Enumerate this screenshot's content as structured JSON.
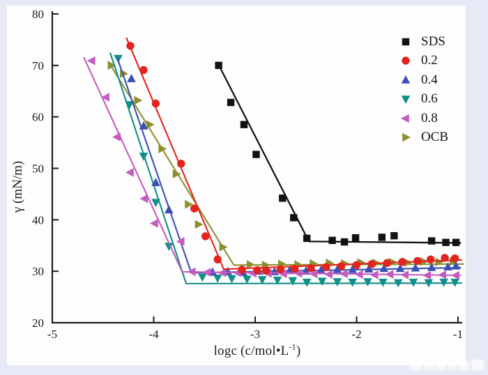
{
  "window": {
    "background_color": "#e7eaf6",
    "panel_color": "#fdfdfd",
    "axis_color": "#1c1c1c"
  },
  "watermark": {
    "legible": false
  },
  "chart_data": {
    "type": "scatter",
    "title": "",
    "xlabel": "logc (c/mol•L⁻¹)",
    "xlabel_parts": {
      "base": "logc (c/mol•L",
      "sup": "-1",
      "end": ")"
    },
    "ylabel": "γ (mN/m)",
    "xlim": [
      -5,
      -1
    ],
    "ylim": [
      20,
      80
    ],
    "xticks": [
      -5,
      -4,
      -3,
      -2,
      -1
    ],
    "yticks": [
      20,
      30,
      40,
      50,
      60,
      70,
      80
    ],
    "grid": false,
    "legend_position": "upper-right",
    "series": [
      {
        "name": "SDS",
        "marker": "square",
        "color": "#121212",
        "points": [
          [
            -3.36,
            70.0
          ],
          [
            -3.24,
            62.8
          ],
          [
            -3.11,
            58.5
          ],
          [
            -2.99,
            52.7
          ],
          [
            -2.73,
            44.2
          ],
          [
            -2.62,
            40.4
          ],
          [
            -2.49,
            36.4
          ],
          [
            -2.24,
            36.0
          ],
          [
            -2.12,
            35.7
          ],
          [
            -2.01,
            36.5
          ],
          [
            -1.75,
            36.6
          ],
          [
            -1.63,
            36.9
          ],
          [
            -1.26,
            35.9
          ],
          [
            -1.12,
            35.6
          ],
          [
            -1.02,
            35.6
          ]
        ],
        "fit_line": [
          [
            -3.37,
            70.5
          ],
          [
            -2.47,
            35.8
          ],
          [
            -0.97,
            35.5
          ]
        ]
      },
      {
        "name": "0.2",
        "marker": "circle",
        "color": "#e2231e",
        "points": [
          [
            -4.23,
            73.8
          ],
          [
            -4.1,
            69.1
          ],
          [
            -3.98,
            62.6
          ],
          [
            -3.73,
            50.9
          ],
          [
            -3.6,
            42.2
          ],
          [
            -3.49,
            36.8
          ],
          [
            -3.37,
            32.3
          ],
          [
            -3.13,
            30.3
          ],
          [
            -2.98,
            30.2
          ],
          [
            -2.89,
            30.1
          ],
          [
            -2.75,
            30.4
          ],
          [
            -2.61,
            30.5
          ],
          [
            -2.45,
            30.6
          ],
          [
            -2.3,
            30.8
          ],
          [
            -2.15,
            31.0
          ],
          [
            -2.0,
            31.2
          ],
          [
            -1.85,
            31.4
          ],
          [
            -1.7,
            31.6
          ],
          [
            -1.55,
            31.8
          ],
          [
            -1.4,
            32.0
          ],
          [
            -1.27,
            32.3
          ],
          [
            -1.13,
            32.6
          ],
          [
            -1.03,
            32.5
          ]
        ],
        "fit_line": [
          [
            -4.27,
            75.4
          ],
          [
            -3.31,
            30.4
          ],
          [
            -0.96,
            32.2
          ]
        ]
      },
      {
        "name": "0.4",
        "marker": "triangle-up",
        "color": "#3a50b2",
        "points": [
          [
            -4.22,
            67.4
          ],
          [
            -4.1,
            58.2
          ],
          [
            -3.98,
            47.2
          ],
          [
            -3.85,
            41.9
          ],
          [
            -3.42,
            29.8
          ],
          [
            -3.27,
            29.9
          ],
          [
            -3.12,
            29.8
          ],
          [
            -2.96,
            30.0
          ],
          [
            -2.81,
            29.9
          ],
          [
            -2.66,
            30.1
          ],
          [
            -2.5,
            30.0
          ],
          [
            -2.35,
            30.2
          ],
          [
            -2.19,
            30.3
          ],
          [
            -2.04,
            30.3
          ],
          [
            -1.88,
            30.4
          ],
          [
            -1.73,
            30.5
          ],
          [
            -1.57,
            30.5
          ],
          [
            -1.42,
            30.6
          ],
          [
            -1.26,
            30.7
          ],
          [
            -1.1,
            30.8
          ],
          [
            -1.02,
            31.0
          ]
        ],
        "fit_line": [
          [
            -4.36,
            71.5
          ],
          [
            -3.63,
            29.7
          ],
          [
            -0.97,
            30.7
          ]
        ]
      },
      {
        "name": "0.6",
        "marker": "triangle-down",
        "color": "#0f8f88",
        "points": [
          [
            -4.35,
            71.4
          ],
          [
            -4.24,
            62.4
          ],
          [
            -4.1,
            52.4
          ],
          [
            -3.98,
            43.4
          ],
          [
            -3.85,
            34.9
          ],
          [
            -3.52,
            28.9
          ],
          [
            -3.37,
            28.7
          ],
          [
            -3.23,
            28.6
          ],
          [
            -3.08,
            28.5
          ],
          [
            -2.93,
            28.4
          ],
          [
            -2.78,
            28.3
          ],
          [
            -2.63,
            28.2
          ],
          [
            -2.49,
            27.9
          ],
          [
            -2.34,
            28.1
          ],
          [
            -2.19,
            28.0
          ],
          [
            -2.04,
            27.9
          ],
          [
            -1.89,
            28.0
          ],
          [
            -1.74,
            27.9
          ],
          [
            -1.59,
            27.8
          ],
          [
            -1.44,
            27.9
          ],
          [
            -1.29,
            27.8
          ],
          [
            -1.14,
            27.9
          ],
          [
            -1.03,
            27.9
          ]
        ],
        "fit_line": [
          [
            -4.43,
            72.5
          ],
          [
            -3.68,
            27.6
          ],
          [
            -0.96,
            27.7
          ]
        ]
      },
      {
        "name": "0.8",
        "marker": "triangle-left",
        "color": "#c45cc0",
        "points": [
          [
            -4.61,
            70.9
          ],
          [
            -4.47,
            63.8
          ],
          [
            -4.36,
            56.1
          ],
          [
            -4.23,
            49.2
          ],
          [
            -4.09,
            44.1
          ],
          [
            -3.99,
            39.3
          ],
          [
            -3.73,
            35.8
          ],
          [
            -3.62,
            29.9
          ],
          [
            -3.47,
            29.8
          ],
          [
            -3.32,
            29.7
          ],
          [
            -3.17,
            29.7
          ],
          [
            -3.02,
            29.6
          ],
          [
            -2.87,
            29.6
          ],
          [
            -2.72,
            29.5
          ],
          [
            -2.57,
            29.6
          ],
          [
            -2.42,
            29.5
          ],
          [
            -2.27,
            29.4
          ],
          [
            -2.12,
            29.5
          ],
          [
            -1.97,
            29.4
          ],
          [
            -1.82,
            29.3
          ],
          [
            -1.67,
            29.4
          ],
          [
            -1.52,
            29.3
          ],
          [
            -1.3,
            29.2
          ],
          [
            -1.15,
            29.3
          ],
          [
            -1.02,
            29.2
          ]
        ],
        "fit_line": [
          [
            -4.69,
            71.6
          ],
          [
            -3.72,
            29.9
          ],
          [
            -0.97,
            29.2
          ]
        ]
      },
      {
        "name": "OCB",
        "marker": "triangle-right",
        "color": "#8e9030",
        "points": [
          [
            -4.42,
            70.0
          ],
          [
            -4.3,
            68.4
          ],
          [
            -4.16,
            63.2
          ],
          [
            -4.04,
            58.5
          ],
          [
            -3.92,
            53.8
          ],
          [
            -3.78,
            48.9
          ],
          [
            -3.66,
            43.0
          ],
          [
            -3.56,
            39.1
          ],
          [
            -3.32,
            34.7
          ],
          [
            -3.05,
            31.3
          ],
          [
            -2.9,
            31.2
          ],
          [
            -2.74,
            31.4
          ],
          [
            -2.58,
            31.3
          ],
          [
            -2.43,
            31.5
          ],
          [
            -2.27,
            31.6
          ],
          [
            -2.12,
            31.5
          ],
          [
            -1.96,
            31.7
          ],
          [
            -1.81,
            31.6
          ],
          [
            -1.65,
            31.8
          ],
          [
            -1.5,
            31.7
          ],
          [
            -1.34,
            31.9
          ],
          [
            -1.19,
            31.8
          ],
          [
            -1.05,
            31.9
          ]
        ],
        "fit_line": [
          [
            -4.45,
            70.8
          ],
          [
            -3.21,
            31.2
          ],
          [
            -0.94,
            31.4
          ]
        ]
      }
    ]
  },
  "legend": {
    "entries": [
      "SDS",
      "0.2",
      "0.4",
      "0.6",
      "0.8",
      "OCB"
    ]
  }
}
